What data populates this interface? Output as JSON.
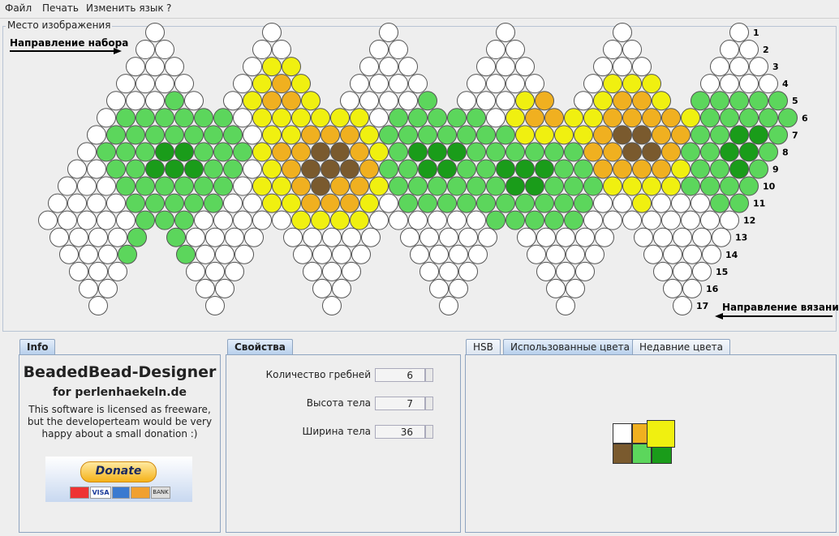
{
  "menu": [
    "Файл",
    "Печать",
    "Изменить язык",
    "?"
  ],
  "image_panel": {
    "title": "Место изображения",
    "direction_start": "Направление набора",
    "direction_knit": "Направление вязания",
    "row_numbers": [
      "1",
      "2",
      "3",
      "4",
      "5",
      "6",
      "7",
      "8",
      "9",
      "10",
      "11",
      "12",
      "13",
      "14",
      "15",
      "16",
      "17"
    ]
  },
  "info": {
    "tab": "Info",
    "app_name": "BeadedBead-Designer",
    "site": "for perlenhaekeln.de",
    "license": "This software is licensed as freeware, but the developerteam would be very happy about a small donation :)",
    "donate": "Donate",
    "cards": [
      "VISA",
      "BANK"
    ]
  },
  "properties": {
    "tab": "Свойства",
    "fields": [
      {
        "label": "Количество гребней",
        "value": "6"
      },
      {
        "label": "Высота тела",
        "value": "7"
      },
      {
        "label": "Ширина тела",
        "value": "36"
      }
    ]
  },
  "colors_tabs": [
    "HSB",
    "Использованные цвета",
    "Недавние цвета"
  ]
}
